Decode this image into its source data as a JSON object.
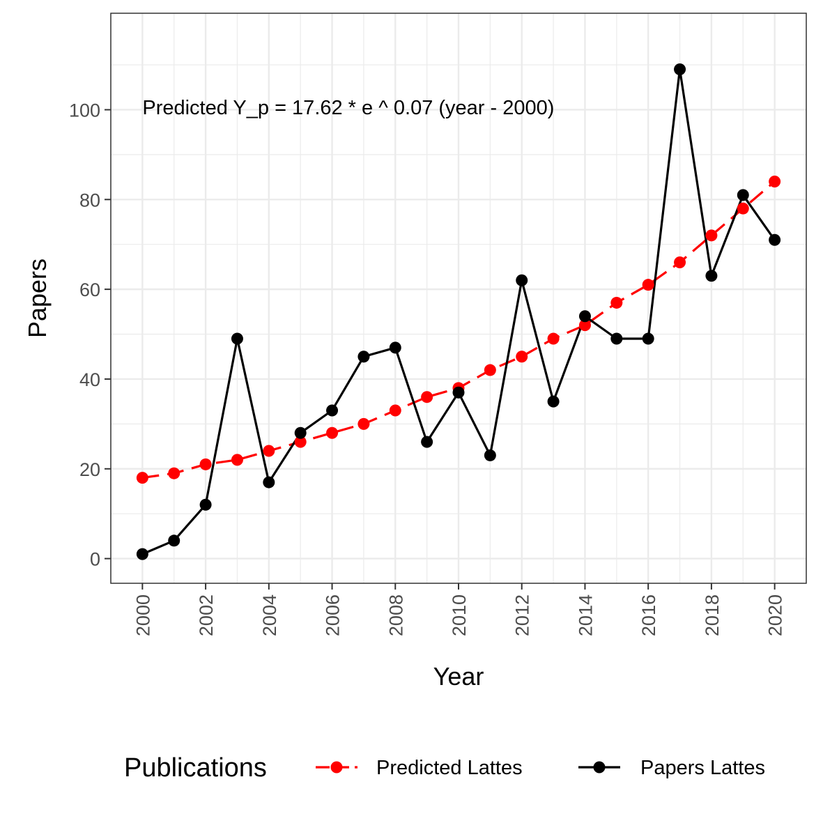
{
  "chart_data": {
    "type": "line",
    "x": [
      2000,
      2001,
      2002,
      2003,
      2004,
      2005,
      2006,
      2007,
      2008,
      2009,
      2010,
      2011,
      2012,
      2013,
      2014,
      2015,
      2016,
      2017,
      2018,
      2019,
      2020
    ],
    "series": [
      {
        "name": "Predicted Lattes",
        "color": "#ff0000",
        "line_style": "dashed",
        "values": [
          18,
          19,
          21,
          22,
          24,
          26,
          28,
          30,
          33,
          36,
          38,
          42,
          45,
          49,
          52,
          57,
          61,
          66,
          72,
          78,
          84
        ]
      },
      {
        "name": "Papers Lattes",
        "color": "#000000",
        "line_style": "solid",
        "values": [
          1,
          4,
          12,
          49,
          17,
          28,
          33,
          45,
          47,
          26,
          37,
          23,
          62,
          35,
          54,
          49,
          49,
          109,
          63,
          81,
          71
        ]
      }
    ],
    "xlabel": "Year",
    "ylabel": "Papers",
    "xlim": [
      1999.0,
      2021.0
    ],
    "ylim": [
      -5.5,
      121.5
    ],
    "x_ticks": [
      "2000",
      "2002",
      "2004",
      "2006",
      "2008",
      "2010",
      "2012",
      "2014",
      "2016",
      "2018",
      "2020"
    ],
    "y_ticks": [
      "0",
      "20",
      "40",
      "60",
      "80",
      "100"
    ],
    "annotation": {
      "text": "Predicted Y_p = 17.62 * e ^ 0.07 (year - 2000)",
      "x": 2000,
      "y": 99
    },
    "legend": {
      "title": "Publications",
      "placement": "bottom"
    },
    "grid": true
  }
}
